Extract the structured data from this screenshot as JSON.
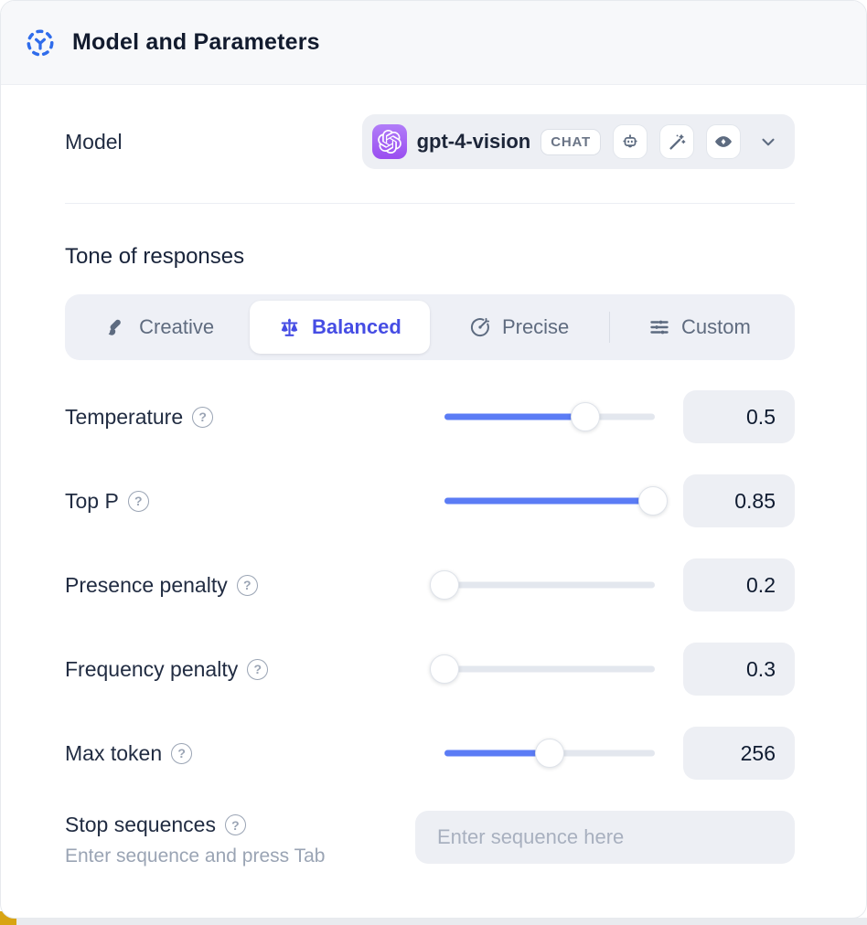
{
  "header": {
    "title": "Model and Parameters"
  },
  "model_row": {
    "label": "Model",
    "selector": {
      "name": "gpt-4-vision",
      "badge": "CHAT",
      "provider_icon": "openai-logo",
      "capability_icons": [
        "robot-icon",
        "magic-wand-icon",
        "vision-icon"
      ]
    }
  },
  "tone": {
    "heading": "Tone of responses",
    "options": [
      {
        "label": "Creative",
        "icon": "paintbrush-icon",
        "selected": false
      },
      {
        "label": "Balanced",
        "icon": "balance-scale-icon",
        "selected": true
      },
      {
        "label": "Precise",
        "icon": "target-icon",
        "selected": false
      },
      {
        "label": "Custom",
        "icon": "sliders-icon",
        "selected": false
      }
    ]
  },
  "parameters": [
    {
      "label": "Temperature",
      "value": "0.5",
      "percent": 67
    },
    {
      "label": "Top P",
      "value": "0.85",
      "percent": 99
    },
    {
      "label": "Presence penalty",
      "value": "0.2",
      "percent": 0
    },
    {
      "label": "Frequency penalty",
      "value": "0.3",
      "percent": 0
    },
    {
      "label": "Max token",
      "value": "256",
      "percent": 50
    }
  ],
  "stop_sequences": {
    "label": "Stop sequences",
    "helper": "Enter sequence and press Tab",
    "placeholder": "Enter sequence here"
  },
  "colors": {
    "accent_blue": "#5b7cf5",
    "selected_indigo": "#464de4",
    "brand_purple": "#9a4ef0",
    "header_icon_blue": "#2f6ceb",
    "corner_accent": "#d8a413"
  }
}
